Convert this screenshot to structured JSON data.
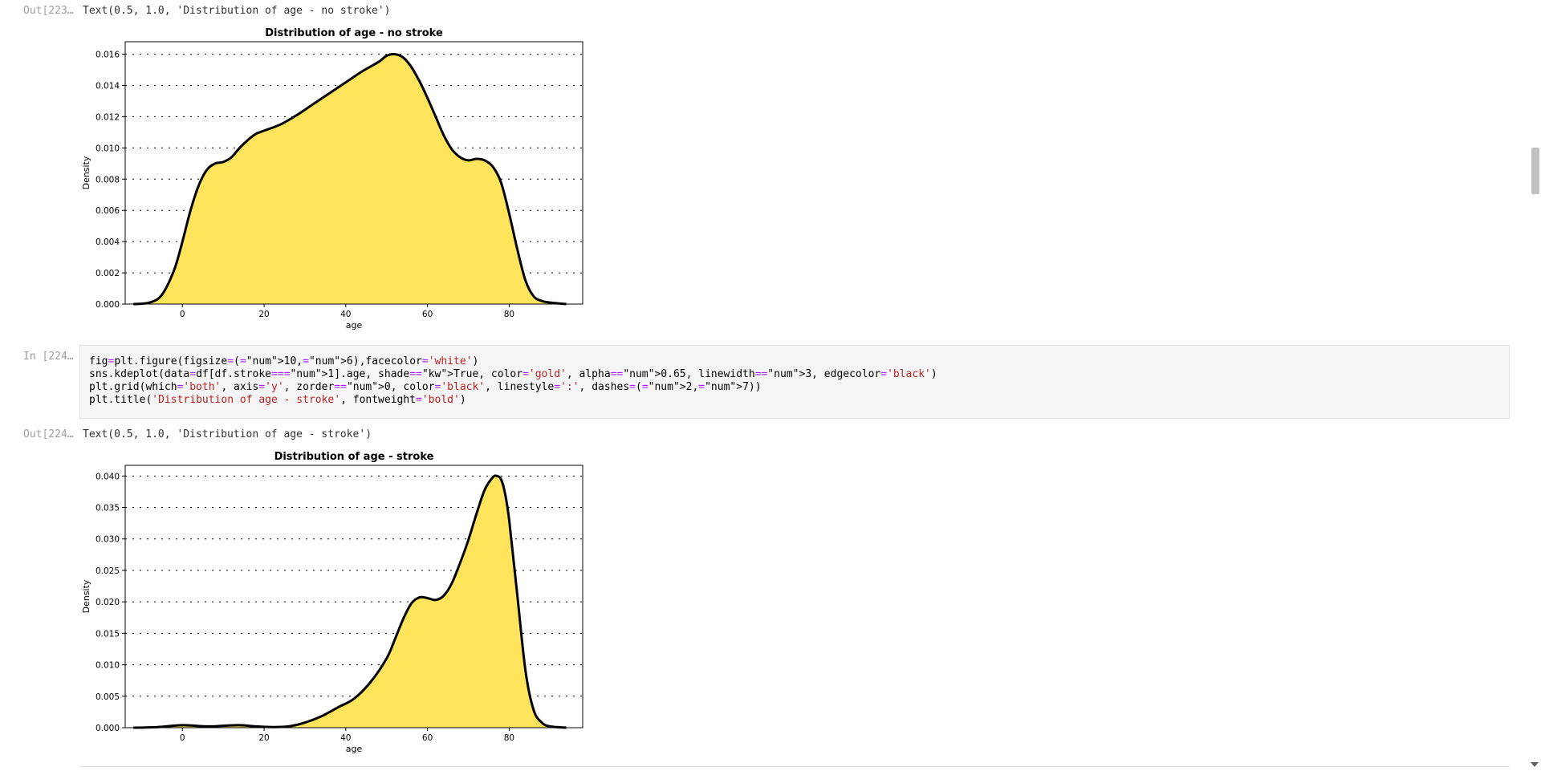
{
  "cells": {
    "out223": {
      "prompt": "Out[223…",
      "text": "Text(0.5, 1.0, 'Distribution of age - no stroke')"
    },
    "in224": {
      "prompt": "In [224…",
      "lines": [
        "fig=plt.figure(figsize=(10,6),facecolor='white')",
        "sns.kdeplot(data=df[df.stroke==1].age, shade=True, color='gold', alpha=0.65, linewidth=3, edgecolor='black')",
        "plt.grid(which='both', axis='y', zorder=0, color='black', linestyle=':', dashes=(2,7))",
        "plt.title('Distribution of age - stroke', fontweight='bold')"
      ]
    },
    "out224": {
      "prompt": "Out[224…",
      "text": "Text(0.5, 1.0, 'Distribution of age - stroke')"
    }
  },
  "chart_data": [
    {
      "type": "area",
      "title": "Distribution of age - no stroke",
      "xlabel": "age",
      "ylabel": "Density",
      "xlim": [
        -14,
        98
      ],
      "ylim": [
        0,
        0.0168
      ],
      "xticks": [
        0,
        20,
        40,
        60,
        80
      ],
      "yticks": [
        "0.000",
        "0.002",
        "0.004",
        "0.006",
        "0.008",
        "0.010",
        "0.012",
        "0.014",
        "0.016"
      ],
      "grid": "y-dotted",
      "fill_color": "#ffe45c",
      "line_color": "#000000",
      "x": [
        -12,
        -8,
        -5,
        -2,
        0,
        2,
        4,
        6,
        8,
        10,
        12,
        14,
        16,
        18,
        20,
        24,
        28,
        32,
        36,
        40,
        44,
        48,
        50,
        52,
        54,
        56,
        58,
        60,
        62,
        64,
        66,
        68,
        70,
        72,
        74,
        76,
        78,
        80,
        82,
        84,
        86,
        88,
        90,
        94
      ],
      "y": [
        0.0,
        0.0001,
        0.0006,
        0.0022,
        0.004,
        0.006,
        0.0076,
        0.0086,
        0.009,
        0.0091,
        0.0094,
        0.01,
        0.0105,
        0.0109,
        0.0111,
        0.0115,
        0.0121,
        0.0128,
        0.0135,
        0.0142,
        0.0149,
        0.0155,
        0.0159,
        0.016,
        0.0158,
        0.0152,
        0.0143,
        0.0132,
        0.012,
        0.0108,
        0.0099,
        0.0094,
        0.0092,
        0.0093,
        0.0092,
        0.0088,
        0.0078,
        0.0058,
        0.0035,
        0.0015,
        0.0005,
        0.0002,
        0.0001,
        0.0
      ]
    },
    {
      "type": "area",
      "title": "Distribution of age - stroke",
      "xlabel": "age",
      "ylabel": "Density",
      "xlim": [
        -14,
        98
      ],
      "ylim": [
        0,
        0.0417
      ],
      "xticks": [
        0,
        20,
        40,
        60,
        80
      ],
      "yticks": [
        "0.000",
        "0.005",
        "0.010",
        "0.015",
        "0.020",
        "0.025",
        "0.030",
        "0.035",
        "0.040"
      ],
      "grid": "y-dotted",
      "fill_color": "#ffe45c",
      "line_color": "#000000",
      "x": [
        -12,
        -6,
        0,
        6,
        10,
        14,
        18,
        22,
        26,
        30,
        34,
        38,
        42,
        46,
        50,
        52,
        54,
        56,
        58,
        60,
        62,
        64,
        66,
        68,
        70,
        72,
        74,
        76,
        77,
        78,
        79,
        80,
        82,
        84,
        86,
        88,
        90,
        94
      ],
      "y": [
        0.0,
        0.0001,
        0.0004,
        0.0002,
        0.0003,
        0.0004,
        0.0002,
        0.0001,
        0.0002,
        0.0008,
        0.0018,
        0.0032,
        0.0046,
        0.0072,
        0.011,
        0.014,
        0.0172,
        0.0197,
        0.0207,
        0.0206,
        0.0203,
        0.021,
        0.023,
        0.0262,
        0.0298,
        0.034,
        0.0378,
        0.0398,
        0.04,
        0.0395,
        0.0372,
        0.033,
        0.021,
        0.009,
        0.0028,
        0.0008,
        0.0002,
        0.0
      ]
    }
  ]
}
